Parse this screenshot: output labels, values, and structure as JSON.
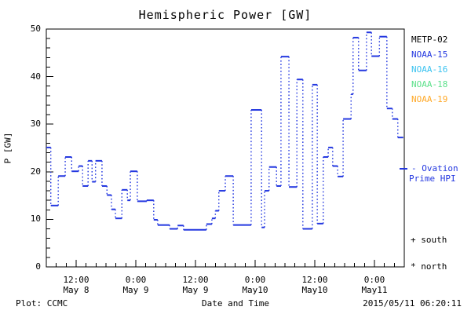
{
  "title": "Hemispheric Power [GW]",
  "colors": {
    "background": "#ffffff",
    "axis": "#000000",
    "hpi_curve": "#2438e0",
    "noaa15": "#2438e0",
    "noaa16": "#3cc3f0",
    "noaa18": "#5ce08a",
    "noaa19": "#ffa928"
  },
  "legend": {
    "satellites": [
      {
        "label": "METP-02",
        "color": "#000000"
      },
      {
        "label": "NOAA-15",
        "color": "#2438e0"
      },
      {
        "label": "NOAA-16",
        "color": "#3cc3f0"
      },
      {
        "label": "NOAA-18",
        "color": "#5ce08a"
      },
      {
        "label": "NOAA-19",
        "color": "#ffa928"
      }
    ],
    "model_line1": "- Ovation",
    "model_line2": "Prime HPI",
    "marker_south": "+ south",
    "marker_north": "* north"
  },
  "footer": {
    "left": "Plot: CCMC",
    "center": "Date and Time",
    "right": "2015/05/11 06:20:11"
  },
  "chart_data": {
    "type": "line",
    "subtype": "step",
    "title": "Hemispheric Power [GW]",
    "xlabel": "Date and Time",
    "ylabel": "P [GW]",
    "ylim": [
      0,
      50
    ],
    "y_major_ticks": [
      0,
      10,
      20,
      30,
      40,
      50
    ],
    "y_minor_step": 2,
    "t_unit": "hours after 2015 May 8 06:00 (plot x-range spans May 8 06:00 to May 11 06:00)",
    "x_range_hours": [
      0,
      72
    ],
    "x_minor_step_hours": 2,
    "x_major_ticks": [
      {
        "hour": 6,
        "time": "12:00",
        "date": "May 8"
      },
      {
        "hour": 18,
        "time": "0:00",
        "date": "May 9"
      },
      {
        "hour": 30,
        "time": "12:00",
        "date": "May 9"
      },
      {
        "hour": 42,
        "time": "0:00",
        "date": "May10"
      },
      {
        "hour": 54,
        "time": "12:00",
        "date": "May10"
      },
      {
        "hour": 66,
        "time": "0:00",
        "date": "May11"
      }
    ],
    "grid": false,
    "legend_position": "right margin",
    "series": [
      {
        "name": "Ovation Prime HPI (NOAA-15)",
        "color": "#2438e0",
        "style": "solid horizontal steps joined by dotted verticals",
        "steps_format": "[t_start_hr, t_end_hr, power_GW]",
        "steps": [
          [
            0.0,
            0.9,
            25.1
          ],
          [
            0.9,
            2.4,
            12.9
          ],
          [
            2.4,
            3.8,
            19.1
          ],
          [
            3.8,
            5.1,
            23.1
          ],
          [
            5.1,
            6.5,
            20.1
          ],
          [
            6.5,
            7.3,
            21.2
          ],
          [
            7.3,
            8.4,
            17.0
          ],
          [
            8.4,
            9.2,
            22.3
          ],
          [
            9.2,
            9.9,
            17.9
          ],
          [
            9.9,
            11.2,
            22.3
          ],
          [
            11.2,
            12.2,
            17.0
          ],
          [
            12.2,
            13.1,
            15.1
          ],
          [
            13.1,
            13.9,
            12.1
          ],
          [
            13.9,
            15.2,
            10.2
          ],
          [
            15.2,
            16.3,
            16.2
          ],
          [
            16.3,
            16.9,
            14.0
          ],
          [
            16.9,
            18.3,
            20.1
          ],
          [
            18.3,
            20.2,
            13.8
          ],
          [
            20.2,
            21.6,
            14.0
          ],
          [
            21.6,
            22.4,
            9.9
          ],
          [
            22.4,
            24.8,
            8.8
          ],
          [
            24.8,
            26.4,
            8.0
          ],
          [
            26.4,
            27.6,
            8.7
          ],
          [
            27.6,
            32.2,
            7.8
          ],
          [
            32.2,
            33.3,
            9.0
          ],
          [
            33.3,
            34.0,
            10.2
          ],
          [
            34.0,
            34.7,
            11.8
          ],
          [
            34.7,
            36.0,
            16.0
          ],
          [
            36.0,
            37.6,
            19.1
          ],
          [
            37.6,
            41.2,
            8.8
          ],
          [
            41.2,
            43.3,
            33.0
          ],
          [
            43.3,
            43.9,
            8.3
          ],
          [
            43.9,
            44.8,
            16.0
          ],
          [
            44.8,
            46.3,
            21.0
          ],
          [
            46.3,
            47.2,
            17.0
          ],
          [
            47.2,
            48.8,
            44.2
          ],
          [
            48.8,
            50.4,
            16.8
          ],
          [
            50.4,
            51.6,
            39.4
          ],
          [
            51.6,
            53.5,
            8.0
          ],
          [
            53.5,
            54.5,
            38.3
          ],
          [
            54.5,
            55.7,
            9.1
          ],
          [
            55.7,
            56.7,
            23.1
          ],
          [
            56.7,
            57.6,
            25.1
          ],
          [
            57.6,
            58.6,
            21.2
          ],
          [
            58.6,
            59.7,
            19.0
          ],
          [
            59.7,
            61.3,
            31.1
          ],
          [
            61.3,
            61.7,
            36.3
          ],
          [
            61.7,
            62.8,
            48.2
          ],
          [
            62.8,
            64.4,
            41.3
          ],
          [
            64.4,
            65.4,
            49.3
          ],
          [
            65.4,
            67.0,
            44.3
          ],
          [
            67.0,
            68.5,
            48.4
          ],
          [
            68.5,
            69.6,
            33.3
          ],
          [
            69.6,
            70.7,
            31.1
          ],
          [
            70.7,
            71.8,
            27.2
          ]
        ]
      }
    ]
  }
}
